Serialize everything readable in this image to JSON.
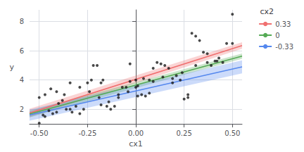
{
  "chart_data": {
    "type": "scatter",
    "title": "",
    "xlabel": "cx1",
    "ylabel": "y",
    "xlim": [
      -0.55,
      0.55
    ],
    "ylim": [
      1.0,
      8.8
    ],
    "xticks": [
      {
        "value": -0.5,
        "label": "-0.50"
      },
      {
        "value": -0.25,
        "label": "-0.25"
      },
      {
        "value": 0,
        "label": "0.00"
      },
      {
        "value": 0.25,
        "label": "0.25"
      },
      {
        "value": 0.5,
        "label": "0.50"
      }
    ],
    "yticks": [
      2,
      4,
      6,
      8
    ],
    "grid": true,
    "legend": "right",
    "legend_title": "cx2",
    "series": [
      {
        "name": "0.33",
        "type": "line",
        "color": "#f07070",
        "x": [
          -0.55,
          0.55
        ],
        "values": [
          1.74,
          6.36
        ],
        "band_lower": [
          1.44,
          6.14
        ],
        "band_upper": [
          2.04,
          6.58
        ]
      },
      {
        "name": "0",
        "type": "line",
        "color": "#55aa55",
        "x": [
          -0.55,
          0.55
        ],
        "values": [
          1.67,
          5.63
        ],
        "band_lower": [
          1.45,
          5.45
        ],
        "band_upper": [
          1.89,
          5.81
        ]
      },
      {
        "name": "-0.33",
        "type": "line",
        "color": "#5588ee",
        "x": [
          -0.55,
          0.55
        ],
        "values": [
          1.6,
          4.9
        ],
        "band_lower": [
          1.22,
          4.45
        ],
        "band_upper": [
          1.98,
          5.35
        ]
      },
      {
        "type": "scatter",
        "color": "#1a1a1a",
        "marker": "circle",
        "x": [
          -0.5,
          -0.48,
          -0.47,
          -0.45,
          -0.43,
          -0.41,
          -0.4,
          -0.38,
          -0.36,
          -0.34,
          -0.33,
          -0.31,
          -0.29,
          -0.27,
          -0.25,
          -0.23,
          -0.22,
          -0.2,
          -0.18,
          -0.17,
          -0.15,
          -0.13,
          -0.11,
          -0.09,
          -0.07,
          -0.05,
          -0.03,
          0.0,
          0.01,
          0.03,
          0.05,
          0.07,
          0.09,
          0.11,
          0.13,
          0.15,
          0.17,
          0.19,
          0.21,
          0.23,
          0.25,
          0.27,
          0.29,
          0.31,
          0.33,
          0.35,
          0.37,
          0.39,
          0.41,
          0.43,
          0.45,
          0.47,
          0.5,
          -0.5,
          -0.47,
          -0.44,
          -0.41,
          -0.37,
          -0.34,
          -0.29,
          -0.24,
          -0.19,
          -0.14,
          -0.09,
          -0.04,
          0.0,
          0.04,
          0.09,
          0.14,
          0.19,
          0.24,
          0.27,
          0.31,
          0.37,
          0.42,
          0.5,
          -0.03,
          0.01,
          -0.18,
          0.07
        ],
        "values": [
          1.05,
          1.6,
          1.5,
          1.9,
          1.7,
          1.8,
          2.4,
          2.6,
          2.0,
          2.0,
          1.8,
          2.2,
          1.7,
          2.0,
          3.8,
          4.0,
          5.0,
          5.0,
          3.8,
          4.0,
          2.2,
          2.0,
          2.2,
          3.0,
          3.5,
          3.5,
          3.9,
          4.0,
          3.6,
          3.0,
          2.9,
          3.1,
          4.8,
          5.2,
          5.1,
          5.0,
          4.8,
          4.1,
          4.3,
          4.0,
          2.7,
          3.0,
          7.2,
          7.0,
          6.7,
          5.9,
          5.2,
          5.0,
          5.3,
          5.5,
          5.2,
          6.5,
          8.5,
          2.8,
          3.0,
          3.4,
          3.2,
          3.0,
          3.8,
          3.5,
          3.2,
          2.8,
          2.5,
          2.8,
          3.2,
          3.5,
          4.1,
          3.9,
          4.2,
          3.8,
          4.5,
          2.8,
          5.0,
          5.8,
          5.3,
          6.5,
          5.1,
          2.9,
          2.3,
          4.0
        ]
      }
    ]
  }
}
